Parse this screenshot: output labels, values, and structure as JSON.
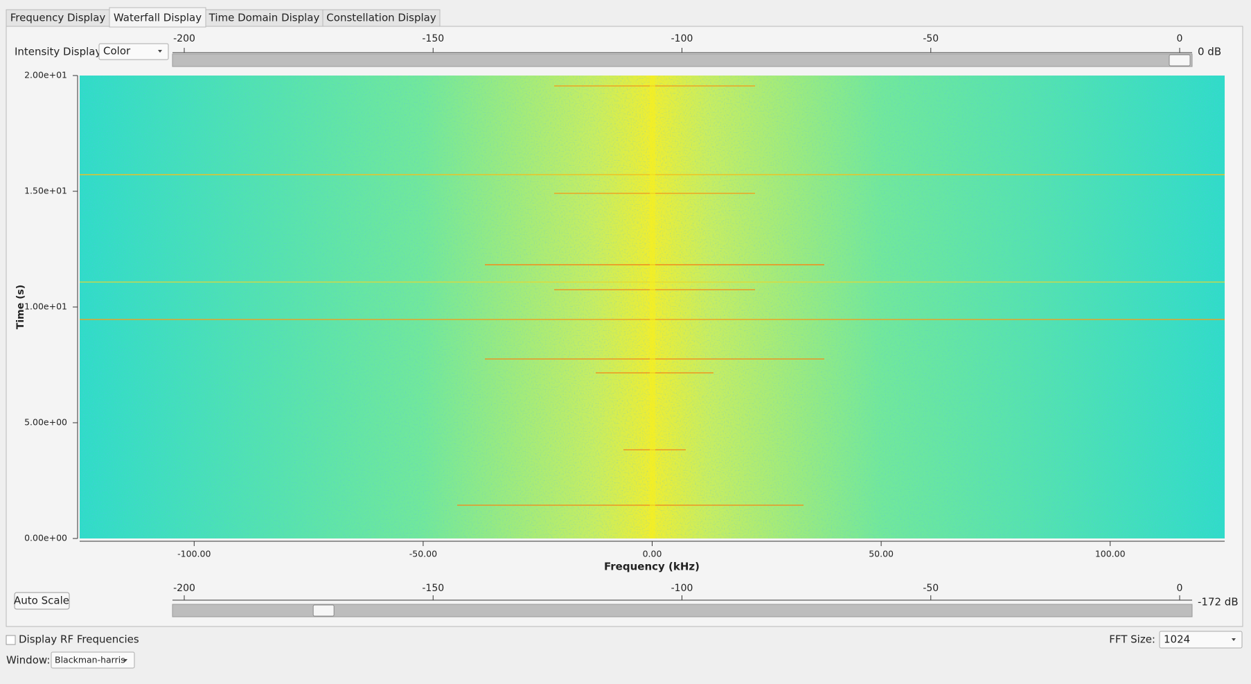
{
  "tabs": [
    "Frequency Display",
    "Waterfall Display",
    "Time Domain Display",
    "Constellation Display"
  ],
  "intensity": {
    "label": "Intensity Display:",
    "value": "Color"
  },
  "top_slider": {
    "lim": [
      -200,
      0
    ],
    "ticks": [
      -200,
      -150,
      -100,
      -50,
      0
    ],
    "value": 0,
    "value_label": "0 dB"
  },
  "plot": {
    "ylabel": "Time (s)",
    "xlabel": "Frequency (kHz)",
    "ylim": [
      0,
      20
    ],
    "yticks": [
      {
        "value": 0,
        "label": "0.00e+00"
      },
      {
        "value": 5,
        "label": "5.00e+00"
      },
      {
        "value": 10,
        "label": "1.00e+01"
      },
      {
        "value": 15,
        "label": "1.50e+01"
      },
      {
        "value": 20,
        "label": "2.00e+01"
      }
    ],
    "xlim": [
      -125,
      125
    ],
    "xticks": [
      {
        "value": -100,
        "label": "-100.00"
      },
      {
        "value": -50,
        "label": "-50.00"
      },
      {
        "value": 0,
        "label": "0.00"
      },
      {
        "value": 50,
        "label": "50.00"
      },
      {
        "value": 100,
        "label": "100.00"
      }
    ]
  },
  "auto_scale": "Auto Scale",
  "bottom_slider": {
    "lim": [
      -200,
      0
    ],
    "ticks": [
      -200,
      -150,
      -100,
      -50,
      0
    ],
    "value": -172,
    "value_label": "-172 dB"
  },
  "rf_checkbox": "Display RF Frequencies",
  "fft": {
    "label": "FFT Size:",
    "value": "1024"
  },
  "window": {
    "label": "Window:",
    "value": "Blackman-harris"
  }
}
